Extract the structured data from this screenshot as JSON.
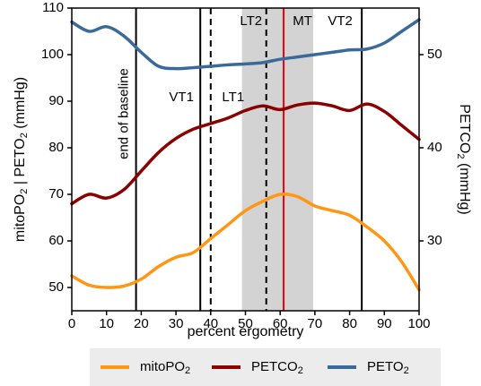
{
  "chart_data": {
    "type": "line",
    "x": {
      "label": "percent ergometry",
      "range": [
        0,
        100
      ],
      "ticks": [
        "0",
        "10",
        "20",
        "30",
        "40",
        "50",
        "60",
        "70",
        "80",
        "90",
        "100"
      ]
    },
    "y_left": {
      "label_parts": [
        "mitoPO",
        "2",
        " | PETO",
        "2",
        " (mmHg)"
      ],
      "range": [
        45,
        110
      ],
      "ticks": [
        "50",
        "60",
        "70",
        "80",
        "90",
        "100",
        "110"
      ]
    },
    "y_right": {
      "label_parts": [
        "PETCO",
        "2",
        " (mmHg)"
      ],
      "range": [
        22.5,
        55
      ],
      "ticks": [
        "30",
        "40",
        "50"
      ]
    },
    "shaded_region": {
      "x_range": [
        49,
        69.5
      ],
      "color": "#d3d3d3"
    },
    "vlines": [
      {
        "x": 18.5,
        "label": "end of baseline",
        "style": "solid",
        "color": "#000000",
        "label_orientation": "vertical"
      },
      {
        "x": 37,
        "label": "VT1",
        "style": "solid",
        "color": "#000000",
        "label_orientation": "horizontal"
      },
      {
        "x": 40,
        "label": "LT1",
        "style": "dashed",
        "color": "#000000",
        "label_orientation": "horizontal"
      },
      {
        "x": 56,
        "label": "LT2",
        "style": "dashed",
        "color": "#000000",
        "label_orientation": "horizontal"
      },
      {
        "x": 61,
        "label": "MT",
        "style": "solid",
        "color": "#e8000b",
        "label_orientation": "horizontal"
      },
      {
        "x": 83.5,
        "label": "VT2",
        "style": "solid",
        "color": "#000000",
        "label_orientation": "horizontal"
      }
    ],
    "series": [
      {
        "name_parts": [
          "mitoPO",
          "2"
        ],
        "axis": "left",
        "color": "#ff9614",
        "x": [
          0,
          5,
          10,
          15,
          20,
          25,
          30,
          35,
          40,
          45,
          50,
          55,
          60,
          65,
          70,
          75,
          80,
          85,
          90,
          95,
          100
        ],
        "y": [
          52.5,
          50.5,
          50,
          50.3,
          51.8,
          54.5,
          56.5,
          57.5,
          60.5,
          63.5,
          66.5,
          68.5,
          70,
          69.5,
          67.5,
          66.5,
          65.5,
          63,
          60,
          55.5,
          49.5
        ]
      },
      {
        "name_parts": [
          "PETCO",
          "2"
        ],
        "axis": "right",
        "color": "#8b0000",
        "x": [
          0,
          5,
          10,
          15,
          20,
          25,
          30,
          35,
          40,
          45,
          50,
          55,
          60,
          65,
          70,
          75,
          80,
          85,
          90,
          95,
          100
        ],
        "y": [
          34,
          35,
          34.6,
          35.5,
          37.5,
          39.5,
          41,
          42,
          42.6,
          43.2,
          44,
          44.5,
          44.1,
          44.6,
          44.8,
          44.5,
          44,
          44.7,
          43.9,
          42.4,
          40.9
        ]
      },
      {
        "name_parts": [
          "PETO",
          "2"
        ],
        "axis": "left",
        "color": "#3b6a9a",
        "x": [
          0,
          5,
          10,
          15,
          20,
          25,
          30,
          35,
          40,
          45,
          50,
          55,
          60,
          65,
          70,
          75,
          80,
          85,
          90,
          95,
          100
        ],
        "y": [
          107,
          105,
          106,
          104,
          100.5,
          97.5,
          97,
          97.2,
          97.5,
          97.8,
          98,
          98.3,
          99,
          99.5,
          100,
          100.5,
          101,
          101.2,
          102.5,
          105,
          107.5
        ]
      }
    ],
    "legend": {
      "position": "bottom"
    }
  }
}
